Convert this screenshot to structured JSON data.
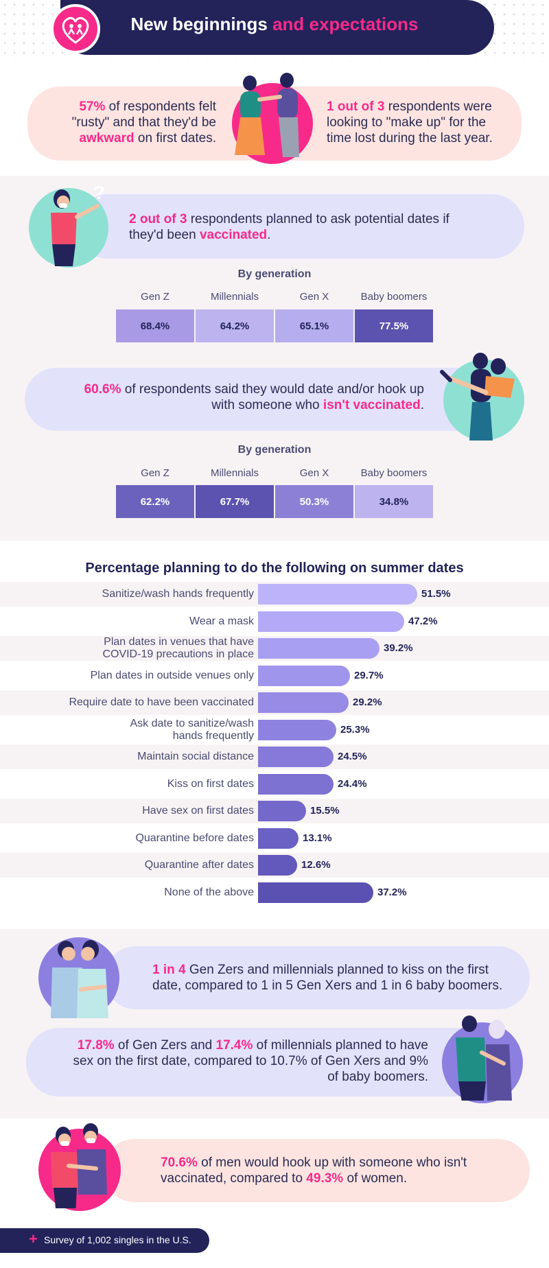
{
  "header": {
    "title_part1": "New beginnings",
    "title_part2": "and expectations"
  },
  "intro": {
    "left_hl1": "57%",
    "left_text1": " of respondents felt \"rusty\" and that they'd be ",
    "left_hl2": "awkward",
    "left_text2": " on first dates.",
    "right_hl1": "1 out of 3",
    "right_text1": " respondents were looking to \"make up\" for the time lost during the last year."
  },
  "vaccinated_ask": {
    "hl1": "2 out of 3",
    "text1": " respondents planned to ask potential dates if they'd been ",
    "hl2": "vaccinated",
    "text2": "."
  },
  "unvaccinated_date": {
    "hl1": "60.6%",
    "text1": " of respondents said they would date and/or hook up with someone who ",
    "hl2": "isn't vaccinated",
    "text2": "."
  },
  "generation_tables": [
    {
      "title": "By generation",
      "labels": [
        "Gen Z",
        "Millennials",
        "Gen X",
        "Baby boomers"
      ],
      "values": [
        "68.4%",
        "64.2%",
        "65.1%",
        "77.5%"
      ],
      "colors": [
        "#a89ae4",
        "#bcb3ef",
        "#b6adee",
        "#5c52b0"
      ],
      "text_colors": [
        "#23235a",
        "#23235a",
        "#23235a",
        "#ffffff"
      ]
    },
    {
      "title": "By generation",
      "labels": [
        "Gen Z",
        "Millennials",
        "Gen X",
        "Baby boomers"
      ],
      "values": [
        "62.2%",
        "67.7%",
        "50.3%",
        "34.8%"
      ],
      "colors": [
        "#6a62bd",
        "#5c52b0",
        "#8c80d6",
        "#bcb3ef"
      ],
      "text_colors": [
        "#ffffff",
        "#ffffff",
        "#ffffff",
        "#23235a"
      ]
    }
  ],
  "chart_data": {
    "type": "bar",
    "orientation": "horizontal",
    "title": "Percentage planning to do the following on summer dates",
    "categories": [
      "Sanitize/wash hands frequently",
      "Wear a mask",
      "Plan dates in venues that have COVID-19 precautions in place",
      "Plan dates in outside venues only",
      "Require date to have been vaccinated",
      "Ask date to sanitize/wash hands frequently",
      "Maintain social distance",
      "Kiss on first dates",
      "Have sex on first dates",
      "Quarantine before dates",
      "Quarantine after dates",
      "None of the above"
    ],
    "label_lines": [
      [
        "Sanitize/wash hands frequently"
      ],
      [
        "Wear a mask"
      ],
      [
        "Plan dates in venues that have",
        "COVID-19 precautions in place"
      ],
      [
        "Plan dates in outside venues only"
      ],
      [
        "Require date to have been vaccinated"
      ],
      [
        "Ask date to sanitize/wash",
        "hands frequently"
      ],
      [
        "Maintain social distance"
      ],
      [
        "Kiss on first dates"
      ],
      [
        "Have sex on first dates"
      ],
      [
        "Quarantine before dates"
      ],
      [
        "Quarantine after dates"
      ],
      [
        "None of the above"
      ]
    ],
    "values": [
      51.5,
      47.2,
      39.2,
      29.7,
      29.2,
      25.3,
      24.5,
      24.4,
      15.5,
      13.1,
      12.6,
      37.2
    ],
    "value_labels": [
      "51.5%",
      "47.2%",
      "39.2%",
      "29.7%",
      "29.2%",
      "25.3%",
      "24.5%",
      "24.4%",
      "15.5%",
      "13.1%",
      "12.6%",
      "37.2%"
    ],
    "colors": [
      "#bcb3fa",
      "#b3a9f6",
      "#a99ff2",
      "#a095ec",
      "#978be6",
      "#8e82e0",
      "#8679d9",
      "#7d71d2",
      "#7468cb",
      "#6b60c3",
      "#6358bb",
      "#5b51b2"
    ],
    "unit": "%"
  },
  "kiss_stat": {
    "hl1": "1 in 4",
    "text1": " Gen Zers and millennials planned to kiss on the first date, compared to 1 in 5 Gen Xers and 1 in 6 baby boomers."
  },
  "sex_stat": {
    "hl1": "17.8%",
    "text1": " of Gen Zers and ",
    "hl2": "17.4%",
    "text2": " of millennials planned to have sex on the first date, compared to 10.7% of Gen Xers and 9% of baby boomers."
  },
  "gender_stat": {
    "hl1": "70.6%",
    "text1": " of men would hook up with someone who isn't vaccinated, compared to ",
    "hl2": "49.3%",
    "text2": " of women."
  },
  "footer": {
    "plus": "+",
    "text": "Survey of 1,002 singles in the U.S."
  }
}
